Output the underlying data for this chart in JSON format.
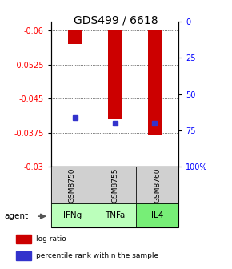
{
  "title": "GDS499 / 6618",
  "categories": [
    "GSM8750",
    "GSM8755",
    "GSM8760"
  ],
  "agents": [
    "IFNg",
    "TNFa",
    "IL4"
  ],
  "bar_bottoms": [
    -0.06,
    -0.06,
    -0.06
  ],
  "bar_tops": [
    -0.057,
    -0.0405,
    -0.037
  ],
  "percentile_values": [
    66,
    70,
    70
  ],
  "ylim_left": [
    -0.03,
    -0.062
  ],
  "yticks_left": [
    -0.03,
    -0.0375,
    -0.045,
    -0.0525,
    -0.06
  ],
  "ytick_labels_left": [
    "-0.03",
    "-0.0375",
    "-0.045",
    "-0.0525",
    "-0.06"
  ],
  "ylim_right": [
    100,
    -3
  ],
  "yticks_right_pos": [
    100,
    75,
    50,
    25,
    0
  ],
  "ytick_labels_right": [
    "100%",
    "75",
    "50",
    "25",
    "0"
  ],
  "bar_color": "#cc0000",
  "percentile_color": "#3333cc",
  "agent_colors": [
    "#aaffaa",
    "#aaffaa",
    "#88ee88"
  ],
  "sample_box_color": "#d0d0d0",
  "background_color": "#ffffff",
  "title_fontsize": 10,
  "legend_items": [
    "log ratio",
    "percentile rank within the sample"
  ],
  "legend_colors": [
    "#cc0000",
    "#3333cc"
  ]
}
